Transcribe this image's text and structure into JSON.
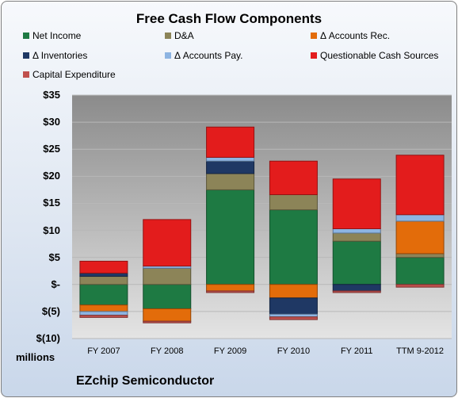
{
  "chart_data": {
    "type": "bar",
    "stacked": true,
    "title": "Free Cash Flow Components",
    "categories": [
      "FY 2007",
      "FY 2008",
      "FY 2009",
      "FY 2010",
      "FY 2011",
      "TTM 9-2012"
    ],
    "units_label": "millions",
    "ylim": [
      -10,
      35
    ],
    "y_ticks": [
      -10,
      -5,
      0,
      5,
      10,
      15,
      20,
      25,
      30,
      35
    ],
    "y_tick_labels": [
      "$(10)",
      "$(5)",
      "$-",
      "$5",
      "$10",
      "$15",
      "$20",
      "$25",
      "$30",
      "$35"
    ],
    "grid": true,
    "legend_position": "top",
    "series": [
      {
        "name": "Net Income",
        "color": "#1e7a43",
        "values": [
          -3.8,
          -4.5,
          17.5,
          13.8,
          8.0,
          5.0
        ]
      },
      {
        "name": "D&A",
        "color": "#8c8458",
        "values": [
          1.5,
          3.0,
          3.0,
          2.8,
          1.5,
          0.7
        ]
      },
      {
        "name": "Δ Accounts Rec.",
        "color": "#e36c0a",
        "values": [
          -1.2,
          -2.3,
          -1.2,
          -2.5,
          0.0,
          6.0
        ]
      },
      {
        "name": "Δ Inventories",
        "color": "#1f3864",
        "values": [
          0.6,
          0.0,
          2.3,
          -3.0,
          -1.2,
          0.0
        ]
      },
      {
        "name": "Δ Accounts Pay.",
        "color": "#8db4e2",
        "values": [
          -0.7,
          0.4,
          0.7,
          -0.5,
          0.8,
          1.2
        ]
      },
      {
        "name": "Questionable Cash Sources",
        "color": "#e31c1c",
        "values": [
          2.2,
          8.6,
          5.6,
          6.2,
          9.2,
          11.0
        ]
      },
      {
        "name": "Capital Expenditure",
        "color": "#c0504d",
        "values": [
          -0.4,
          -0.3,
          -0.3,
          -0.5,
          -0.3,
          -0.5
        ]
      }
    ]
  },
  "footer": {
    "company": "EZchip Semiconductor"
  }
}
